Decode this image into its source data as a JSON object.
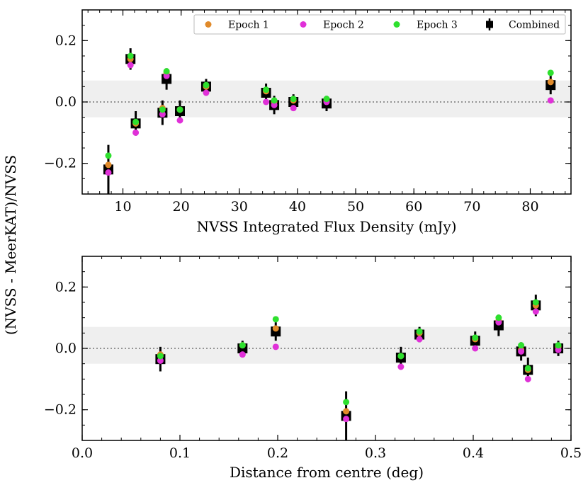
{
  "shared_ylabel": "(NVSS - MeerKAT)/NVSS",
  "legend": [
    {
      "name": "Epoch 1",
      "color": "#e08a2a",
      "marker": "circle"
    },
    {
      "name": "Epoch 2",
      "color": "#e030d8",
      "marker": "circle"
    },
    {
      "name": "Epoch 3",
      "color": "#2ee02e",
      "marker": "circle"
    },
    {
      "name": "Combined",
      "color": "#000000",
      "marker": "square"
    }
  ],
  "shaded_band": [
    -0.05,
    0.07
  ],
  "chart_data": [
    {
      "type": "scatter",
      "xlabel": "NVSS Integrated Flux Density (mJy)",
      "xlim": [
        3,
        87
      ],
      "ylim": [
        -0.3,
        0.3
      ],
      "xticks": [
        10,
        20,
        30,
        40,
        50,
        60,
        70,
        80
      ],
      "xtick_labels": [
        "10",
        "20",
        "30",
        "40",
        "50",
        "60",
        "70",
        "80"
      ],
      "yticks": [
        -0.2,
        0.0,
        0.2
      ],
      "ytick_labels": [
        "−0.2",
        "0.0",
        "0.2"
      ],
      "reference_line": 0.0,
      "x": [
        7.5,
        11.3,
        12.2,
        16.8,
        17.5,
        19.8,
        24.3,
        34.6,
        36.0,
        39.3,
        45.0,
        83.5
      ],
      "series": [
        {
          "name": "Epoch 1",
          "values": [
            -0.205,
            0.14,
            -0.07,
            -0.02,
            0.095,
            -0.025,
            0.05,
            0.035,
            0.0,
            0.005,
            0.005,
            0.065
          ]
        },
        {
          "name": "Epoch 2",
          "values": [
            -0.23,
            0.12,
            -0.1,
            -0.04,
            0.085,
            -0.06,
            0.03,
            0.0,
            -0.01,
            -0.02,
            0.0,
            0.005
          ]
        },
        {
          "name": "Epoch 3",
          "values": [
            -0.175,
            0.15,
            -0.065,
            -0.025,
            0.1,
            -0.025,
            0.055,
            0.04,
            0.005,
            0.01,
            0.01,
            0.095
          ]
        },
        {
          "name": "Combined",
          "values": [
            -0.22,
            0.14,
            -0.07,
            -0.035,
            0.075,
            -0.03,
            0.05,
            0.03,
            -0.01,
            0.0,
            -0.005,
            0.055
          ],
          "err": [
            0.08,
            0.035,
            0.04,
            0.04,
            0.035,
            0.035,
            0.025,
            0.03,
            0.03,
            0.025,
            0.025,
            0.03
          ]
        }
      ]
    },
    {
      "type": "scatter",
      "xlabel": "Distance from centre (deg)",
      "xlim": [
        0.0,
        0.5
      ],
      "ylim": [
        -0.3,
        0.3
      ],
      "xticks": [
        0.0,
        0.1,
        0.2,
        0.3,
        0.4,
        0.5
      ],
      "xtick_labels": [
        "0.0",
        "0.1",
        "0.2",
        "0.3",
        "0.4",
        "0.5"
      ],
      "yticks": [
        -0.2,
        0.0,
        0.2
      ],
      "ytick_labels": [
        "−0.2",
        "0.0",
        "0.2"
      ],
      "reference_line": 0.0,
      "x": [
        0.08,
        0.164,
        0.198,
        0.27,
        0.326,
        0.345,
        0.402,
        0.426,
        0.449,
        0.456,
        0.464,
        0.487
      ],
      "series": [
        {
          "name": "Epoch 1",
          "values": [
            -0.02,
            0.01,
            0.065,
            -0.205,
            -0.025,
            0.05,
            0.03,
            0.09,
            -0.005,
            -0.07,
            0.14,
            0.005
          ]
        },
        {
          "name": "Epoch 2",
          "values": [
            -0.04,
            -0.02,
            0.005,
            -0.23,
            -0.06,
            0.03,
            0.0,
            0.085,
            -0.01,
            -0.1,
            0.12,
            -0.005
          ]
        },
        {
          "name": "Epoch 3",
          "values": [
            -0.025,
            0.01,
            0.095,
            -0.175,
            -0.025,
            0.055,
            0.035,
            0.1,
            0.01,
            -0.065,
            0.15,
            0.01
          ]
        },
        {
          "name": "Combined",
          "values": [
            -0.035,
            0.0,
            0.055,
            -0.22,
            -0.03,
            0.045,
            0.025,
            0.075,
            -0.01,
            -0.07,
            0.14,
            0.0
          ],
          "err": [
            0.04,
            0.025,
            0.03,
            0.08,
            0.035,
            0.025,
            0.03,
            0.035,
            0.03,
            0.04,
            0.035,
            0.025
          ]
        }
      ]
    }
  ]
}
